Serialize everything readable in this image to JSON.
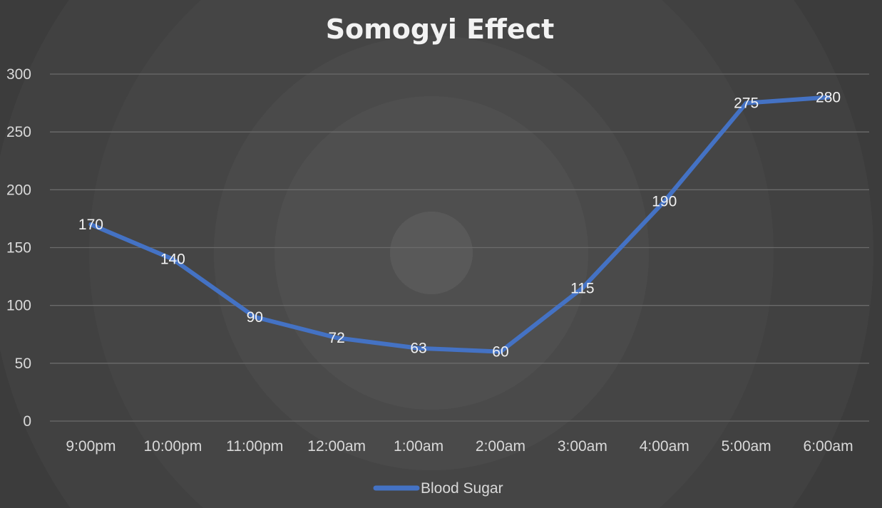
{
  "chart_data": {
    "type": "line",
    "title": "Somogyi Effect",
    "xlabel": "",
    "ylabel": "",
    "categories": [
      "9:00pm",
      "10:00pm",
      "11:00pm",
      "12:00am",
      "1:00am",
      "2:00am",
      "3:00am",
      "4:00am",
      "5:00am",
      "6:00am"
    ],
    "series": [
      {
        "name": "Blood Sugar",
        "values": [
          170,
          140,
          90,
          72,
          63,
          60,
          115,
          190,
          275,
          280
        ],
        "color": "#4472C4"
      }
    ],
    "ylim": [
      0,
      300
    ],
    "yticks": [
      "0",
      "50",
      "100",
      "150",
      "200",
      "250",
      "300"
    ],
    "grid": true,
    "data_labels": true,
    "legend_position": "bottom"
  }
}
